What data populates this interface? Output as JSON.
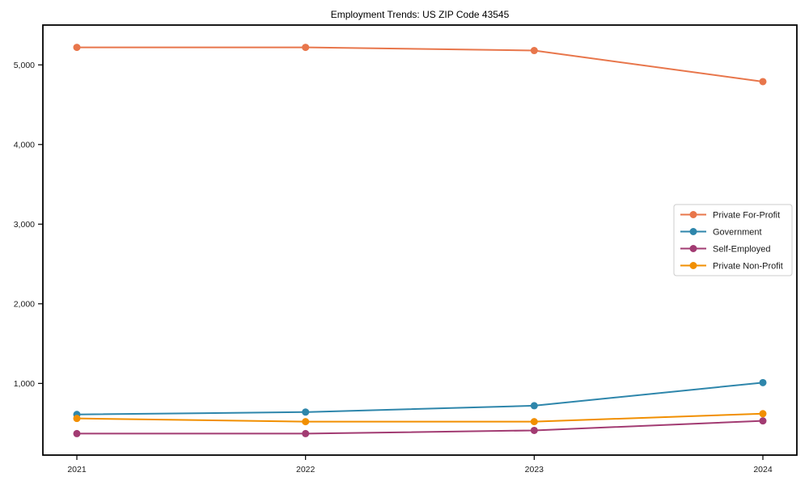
{
  "figure": {
    "background": "#ffffff"
  },
  "chart_data": {
    "type": "line",
    "title": "Employment Trends: US ZIP Code 43545",
    "x": [
      2021,
      2022,
      2023,
      2024
    ],
    "x_tick_labels": [
      "2021",
      "2022",
      "2023",
      "2024"
    ],
    "y_ticks": [
      1000,
      2000,
      3000,
      4000,
      5000
    ],
    "y_tick_labels": [
      "1,000",
      "2,000",
      "3,000",
      "4,000",
      "5,000"
    ],
    "ylim": [
      100,
      5500
    ],
    "xlabel": "",
    "ylabel": "",
    "grid": false,
    "legend_position": "center-right",
    "marker": "circle",
    "line_width": 2,
    "axis_color": "#000000",
    "text_color": "#1a1a1a",
    "legend_border_color": "#cccccc",
    "series": [
      {
        "name": "Private For-Profit",
        "color": "#E8764B",
        "values": [
          5220,
          5220,
          5180,
          4790
        ]
      },
      {
        "name": "Government",
        "color": "#2E86AB",
        "values": [
          610,
          640,
          720,
          1010
        ]
      },
      {
        "name": "Self-Employed",
        "color": "#A23B72",
        "values": [
          370,
          370,
          410,
          530
        ]
      },
      {
        "name": "Private Non-Profit",
        "color": "#F18F01",
        "values": [
          560,
          520,
          520,
          620
        ]
      }
    ]
  }
}
